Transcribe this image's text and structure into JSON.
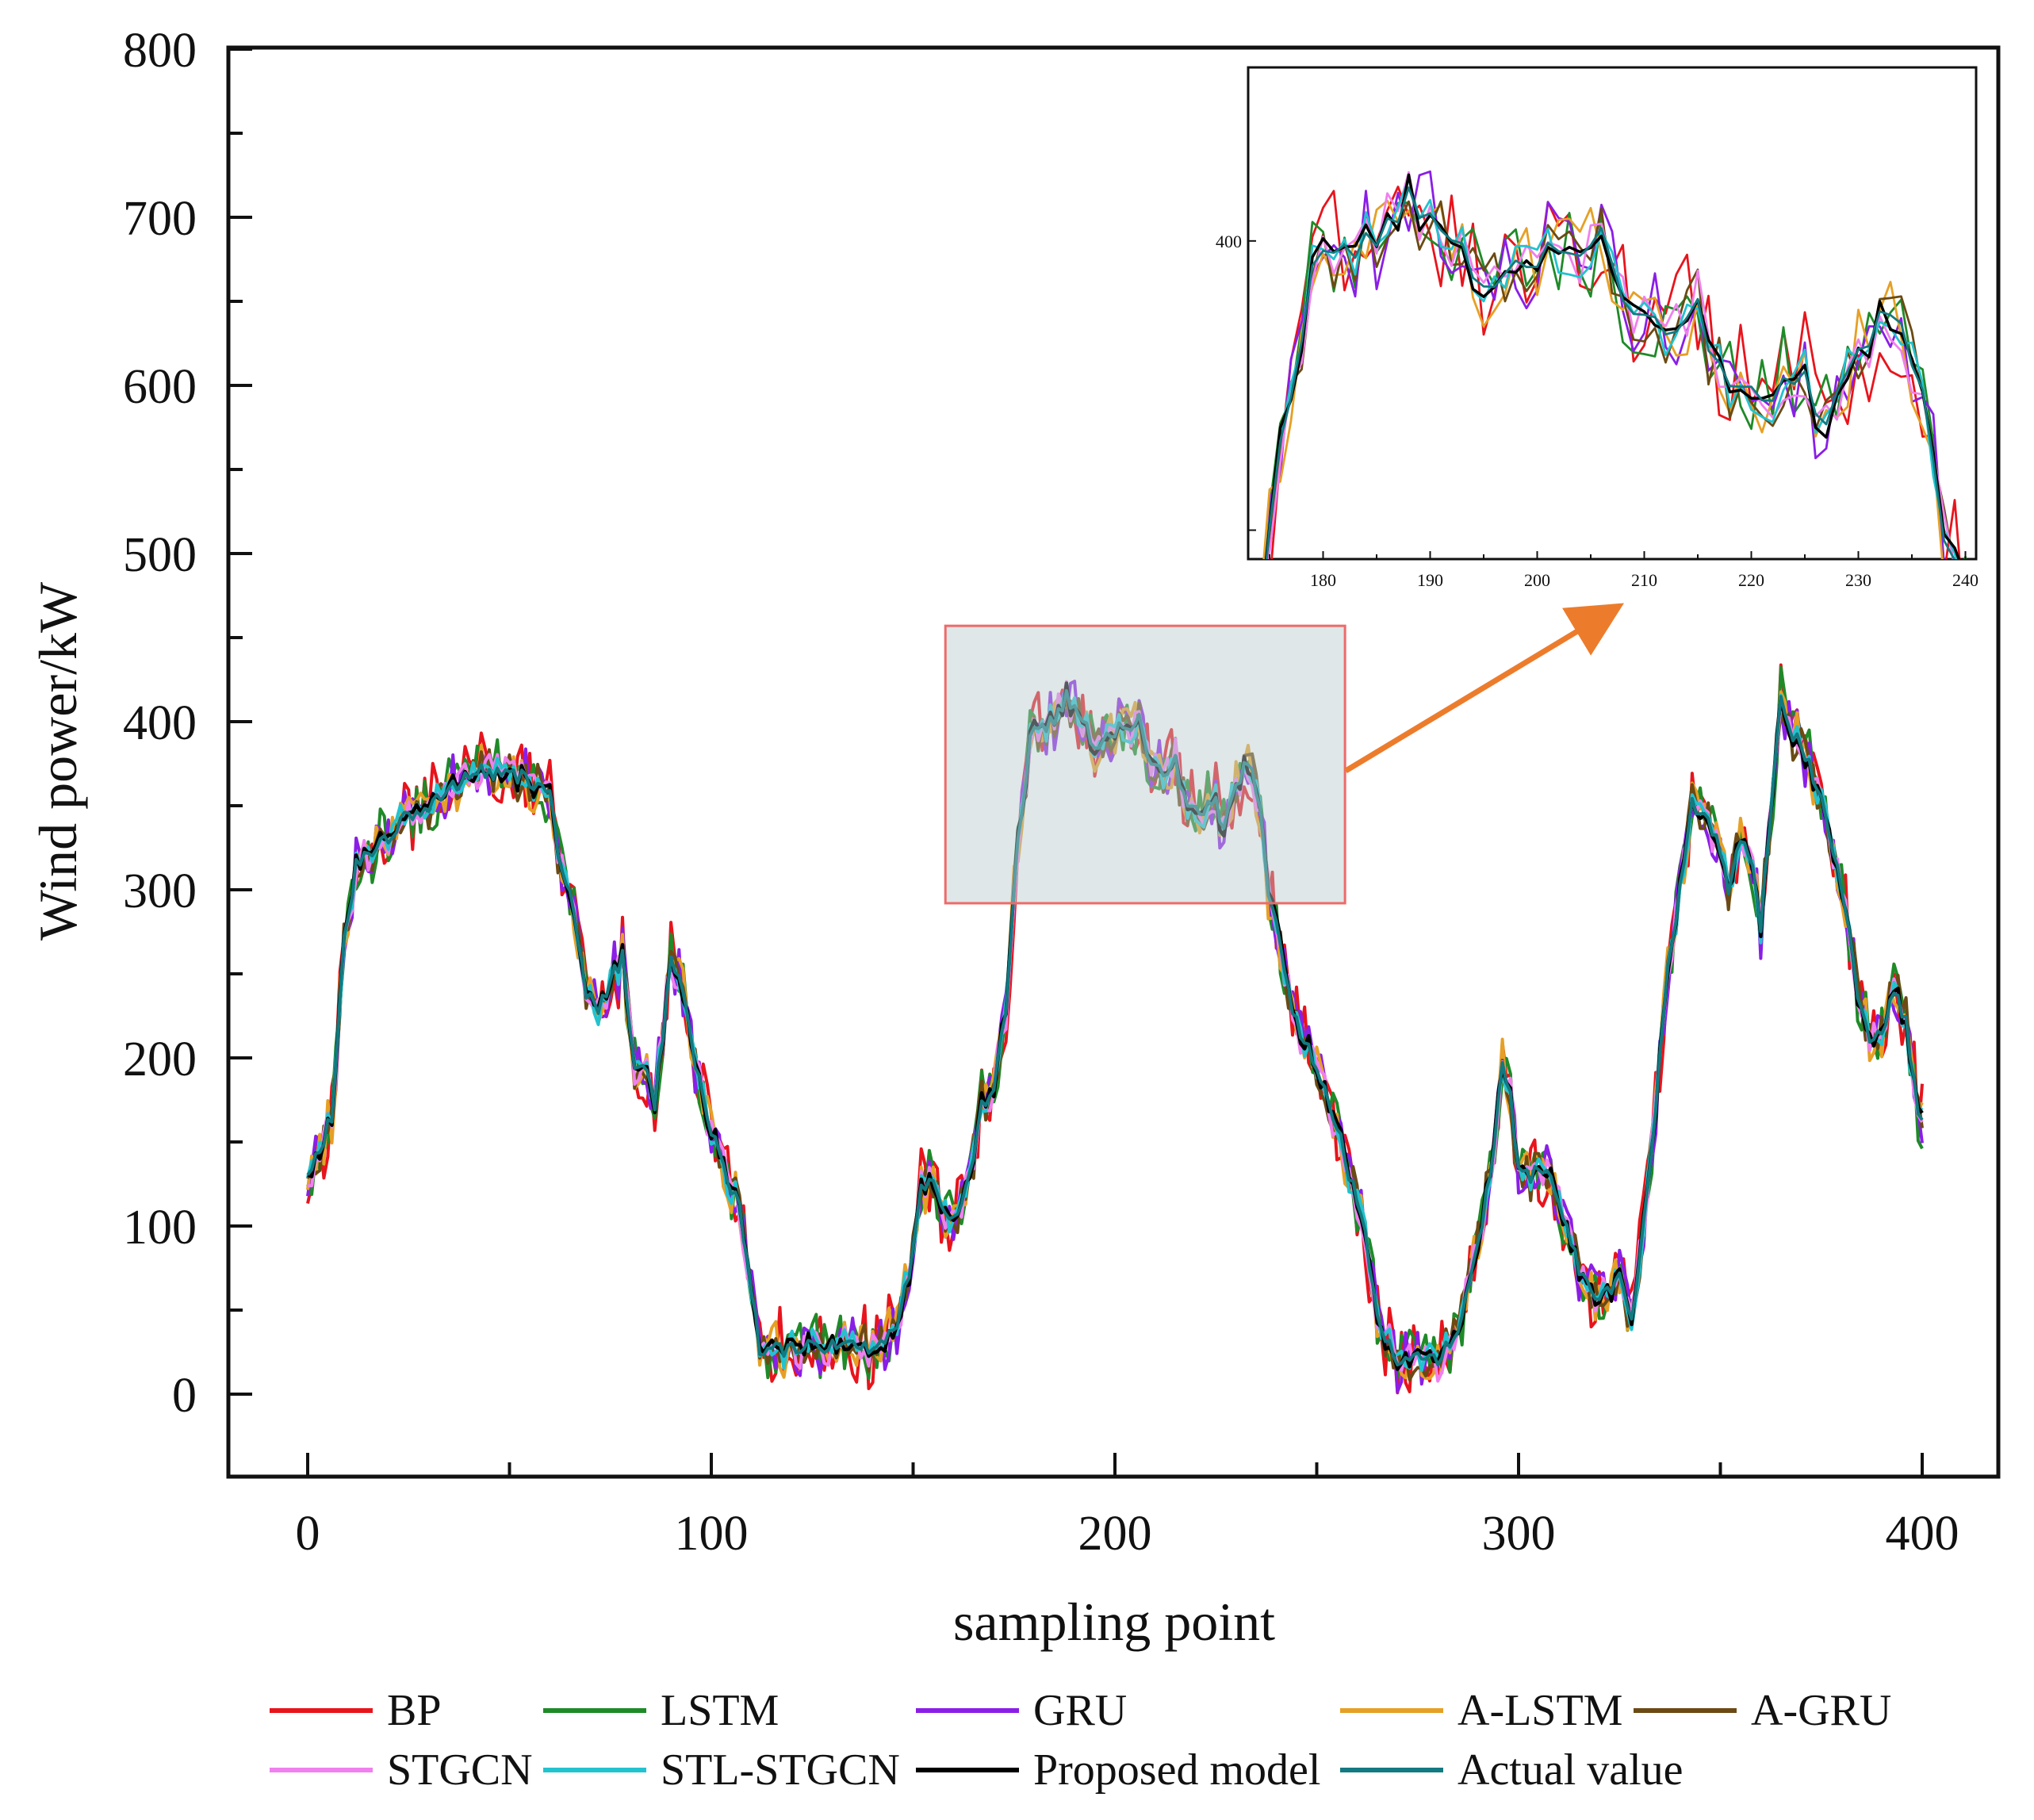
{
  "chart_data": {
    "type": "line",
    "xlabel": "sampling point",
    "ylabel": "Wind power/kW",
    "xlim": [
      -20,
      415
    ],
    "ylim": [
      -50,
      800
    ],
    "x_ticks": [
      0,
      100,
      200,
      300,
      400
    ],
    "y_ticks": [
      0,
      100,
      200,
      300,
      400,
      500,
      600,
      700,
      800
    ],
    "grid": false,
    "legend_position": "bottom",
    "series": [
      {
        "name": "BP",
        "color": "#e8141c",
        "noise": 22,
        "seed": 11
      },
      {
        "name": "LSTM",
        "color": "#1f8a28",
        "noise": 18,
        "seed": 23
      },
      {
        "name": "GRU",
        "color": "#8a1ee6",
        "noise": 16,
        "seed": 37
      },
      {
        "name": "A-LSTM",
        "color": "#e6a025",
        "noise": 14,
        "seed": 41
      },
      {
        "name": "A-GRU",
        "color": "#6b4a14",
        "noise": 12,
        "seed": 53
      },
      {
        "name": "STGCN",
        "color": "#f080ee",
        "noise": 10,
        "seed": 67
      },
      {
        "name": "STL-STGCN",
        "color": "#22c3cf",
        "noise": 8,
        "seed": 79
      },
      {
        "name": "Proposed model",
        "color": "#000000",
        "noise": 5,
        "seed": 83
      },
      {
        "name": "Actual value",
        "color": "#127a80",
        "noise": 0,
        "seed": 97
      }
    ],
    "actual_profile": [
      [
        0,
        135
      ],
      [
        3,
        145
      ],
      [
        6,
        165
      ],
      [
        9,
        270
      ],
      [
        12,
        315
      ],
      [
        16,
        325
      ],
      [
        20,
        330
      ],
      [
        25,
        345
      ],
      [
        30,
        350
      ],
      [
        35,
        360
      ],
      [
        40,
        370
      ],
      [
        45,
        370
      ],
      [
        50,
        368
      ],
      [
        55,
        365
      ],
      [
        60,
        355
      ],
      [
        63,
        310
      ],
      [
        66,
        290
      ],
      [
        69,
        240
      ],
      [
        72,
        230
      ],
      [
        75,
        245
      ],
      [
        78,
        260
      ],
      [
        81,
        195
      ],
      [
        84,
        190
      ],
      [
        86,
        170
      ],
      [
        88,
        215
      ],
      [
        90,
        262
      ],
      [
        92,
        250
      ],
      [
        95,
        210
      ],
      [
        98,
        175
      ],
      [
        101,
        150
      ],
      [
        104,
        130
      ],
      [
        107,
        110
      ],
      [
        110,
        60
      ],
      [
        112,
        25
      ],
      [
        115,
        25
      ],
      [
        120,
        28
      ],
      [
        125,
        28
      ],
      [
        130,
        28
      ],
      [
        135,
        28
      ],
      [
        140,
        28
      ],
      [
        145,
        35
      ],
      [
        149,
        70
      ],
      [
        152,
        120
      ],
      [
        155,
        125
      ],
      [
        158,
        110
      ],
      [
        161,
        105
      ],
      [
        164,
        130
      ],
      [
        167,
        170
      ],
      [
        170,
        180
      ],
      [
        173,
        230
      ],
      [
        176,
        330
      ],
      [
        179,
        390
      ],
      [
        182,
        398
      ],
      [
        185,
        400
      ],
      [
        188,
        415
      ],
      [
        191,
        405
      ],
      [
        194,
        390
      ],
      [
        197,
        385
      ],
      [
        200,
        395
      ],
      [
        203,
        395
      ],
      [
        206,
        400
      ],
      [
        209,
        375
      ],
      [
        212,
        370
      ],
      [
        215,
        375
      ],
      [
        218,
        350
      ],
      [
        221,
        345
      ],
      [
        224,
        355
      ],
      [
        227,
        340
      ],
      [
        230,
        362
      ],
      [
        233,
        375
      ],
      [
        236,
        350
      ],
      [
        238,
        295
      ],
      [
        240,
        280
      ],
      [
        243,
        240
      ],
      [
        246,
        210
      ],
      [
        249,
        200
      ],
      [
        252,
        185
      ],
      [
        255,
        160
      ],
      [
        258,
        130
      ],
      [
        261,
        110
      ],
      [
        264,
        60
      ],
      [
        267,
        30
      ],
      [
        270,
        22
      ],
      [
        275,
        20
      ],
      [
        280,
        22
      ],
      [
        284,
        30
      ],
      [
        288,
        70
      ],
      [
        291,
        100
      ],
      [
        294,
        150
      ],
      [
        296,
        200
      ],
      [
        298,
        175
      ],
      [
        300,
        135
      ],
      [
        303,
        130
      ],
      [
        306,
        135
      ],
      [
        309,
        125
      ],
      [
        312,
        100
      ],
      [
        315,
        75
      ],
      [
        318,
        60
      ],
      [
        322,
        62
      ],
      [
        325,
        70
      ],
      [
        328,
        40
      ],
      [
        331,
        100
      ],
      [
        334,
        170
      ],
      [
        337,
        250
      ],
      [
        340,
        300
      ],
      [
        343,
        350
      ],
      [
        346,
        345
      ],
      [
        349,
        330
      ],
      [
        352,
        300
      ],
      [
        355,
        330
      ],
      [
        358,
        310
      ],
      [
        360,
        280
      ],
      [
        362,
        330
      ],
      [
        365,
        418
      ],
      [
        367,
        395
      ],
      [
        369,
        390
      ],
      [
        372,
        375
      ],
      [
        375,
        355
      ],
      [
        378,
        320
      ],
      [
        381,
        290
      ],
      [
        384,
        240
      ],
      [
        387,
        210
      ],
      [
        390,
        215
      ],
      [
        393,
        240
      ],
      [
        396,
        220
      ],
      [
        399,
        170
      ],
      [
        400,
        165
      ]
    ],
    "inset": {
      "xlim": [
        173,
        241
      ],
      "ylim": [
        290,
        460
      ],
      "x_ticks": [
        180,
        190,
        200,
        210,
        220,
        230,
        240
      ],
      "y_ticks_labeled": [
        400
      ],
      "y_ticks_minor": [
        300
      ]
    },
    "zoom_region": {
      "xlim": [
        158,
        257
      ],
      "ylim": [
        292,
        457
      ]
    }
  }
}
